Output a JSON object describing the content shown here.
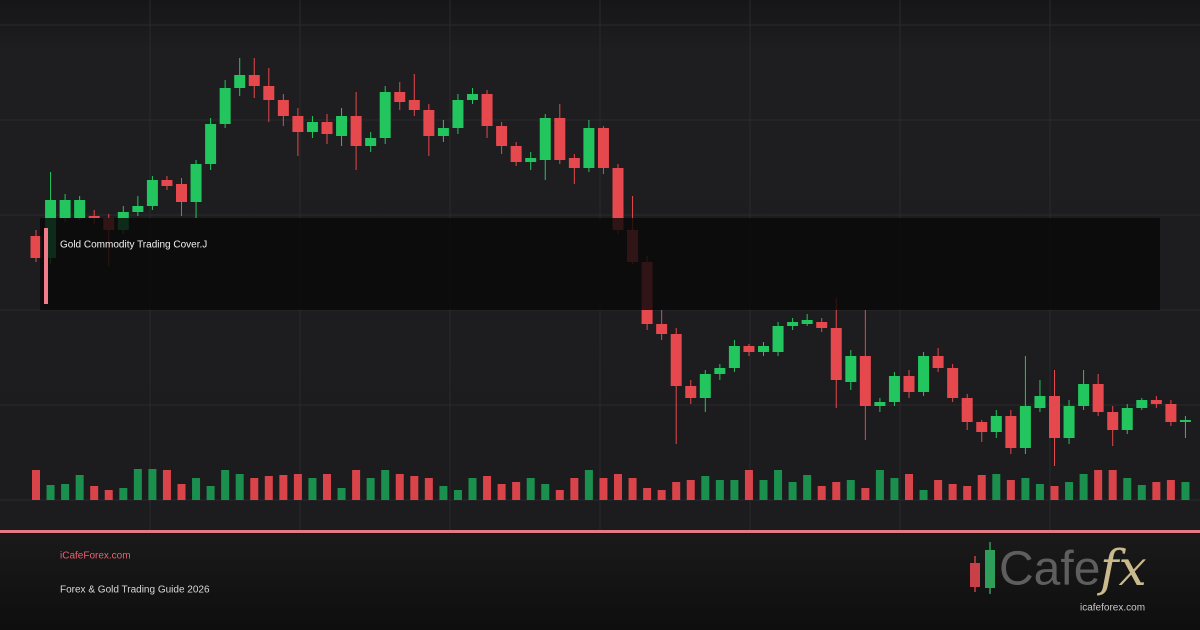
{
  "chart_data": {
    "type": "candlestick",
    "ylim": [
      0,
      500
    ],
    "up_color": "#22c55e",
    "down_color": "#e5484d",
    "volume_up_color": "#1a8f4e",
    "volume_down_color": "#d9434a",
    "open": [
      264,
      242,
      282,
      282,
      284,
      282,
      270,
      288,
      294,
      320,
      316,
      298,
      336,
      376,
      412,
      425,
      414,
      400,
      384,
      368,
      378,
      364,
      384,
      354,
      362,
      408,
      400,
      390,
      364,
      372,
      400,
      406,
      374,
      354,
      338,
      340,
      382,
      342,
      332,
      372,
      332,
      270,
      238,
      176,
      166,
      114,
      102,
      126,
      132,
      154,
      148,
      148,
      174,
      176,
      178,
      172,
      118,
      144,
      94,
      98,
      124,
      108,
      144,
      132,
      102,
      78,
      68,
      84,
      52,
      92,
      104,
      62,
      94,
      116,
      88,
      70,
      92,
      100,
      96,
      78
    ],
    "close": [
      242,
      300,
      300,
      300,
      282,
      270,
      288,
      294,
      320,
      314,
      298,
      336,
      376,
      412,
      425,
      414,
      400,
      384,
      368,
      378,
      366,
      384,
      354,
      362,
      408,
      398,
      390,
      364,
      372,
      400,
      406,
      374,
      354,
      338,
      342,
      382,
      340,
      332,
      372,
      332,
      270,
      238,
      176,
      166,
      114,
      102,
      126,
      132,
      154,
      148,
      154,
      174,
      178,
      180,
      172,
      120,
      144,
      94,
      98,
      124,
      108,
      144,
      132,
      102,
      78,
      68,
      84,
      52,
      94,
      104,
      62,
      94,
      116,
      88,
      70,
      92,
      100,
      96,
      78,
      80
    ],
    "high": [
      270,
      328,
      306,
      304,
      290,
      286,
      294,
      304,
      324,
      324,
      322,
      340,
      382,
      420,
      442,
      442,
      432,
      406,
      392,
      384,
      386,
      392,
      408,
      368,
      414,
      418,
      426,
      396,
      380,
      406,
      412,
      410,
      378,
      358,
      348,
      386,
      396,
      346,
      380,
      374,
      336,
      304,
      244,
      190,
      172,
      120,
      130,
      136,
      160,
      156,
      158,
      178,
      182,
      186,
      182,
      202,
      150,
      190,
      102,
      128,
      130,
      148,
      152,
      136,
      106,
      80,
      90,
      90,
      144,
      120,
      130,
      100,
      130,
      126,
      94,
      96,
      102,
      104,
      100,
      84
    ],
    "low": [
      238,
      236,
      278,
      280,
      276,
      234,
      266,
      284,
      290,
      310,
      284,
      282,
      330,
      372,
      404,
      402,
      378,
      374,
      344,
      362,
      356,
      354,
      330,
      348,
      356,
      390,
      384,
      344,
      358,
      366,
      396,
      362,
      346,
      334,
      330,
      320,
      336,
      316,
      328,
      326,
      266,
      236,
      170,
      160,
      56,
      96,
      88,
      120,
      128,
      144,
      144,
      144,
      170,
      174,
      168,
      92,
      110,
      60,
      88,
      94,
      102,
      104,
      128,
      98,
      70,
      58,
      62,
      46,
      46,
      88,
      34,
      56,
      90,
      84,
      54,
      66,
      90,
      92,
      74,
      62
    ],
    "volume": [
      30,
      15,
      16,
      25,
      14,
      10,
      12,
      31,
      31,
      30,
      16,
      22,
      14,
      30,
      26,
      22,
      24,
      25,
      26,
      22,
      26,
      12,
      30,
      22,
      30,
      26,
      24,
      22,
      14,
      10,
      22,
      24,
      16,
      18,
      22,
      16,
      10,
      22,
      30,
      22,
      26,
      22,
      12,
      10,
      18,
      20,
      24,
      20,
      20,
      30,
      20,
      30,
      18,
      25,
      14,
      18,
      20,
      12,
      30,
      22,
      26,
      10,
      20,
      16,
      14,
      25,
      26,
      20,
      22,
      16,
      14,
      18,
      26,
      30,
      30,
      22,
      15,
      18,
      20,
      18
    ]
  },
  "overlay": {
    "label": "Gold Commodity Trading Cover.J"
  },
  "footer": {
    "site": "iCafeForex.com",
    "subtitle": "Forex & Gold Trading Guide 2026"
  },
  "logo": {
    "word": "Cafe",
    "accent": "fx",
    "url": "icafeforex.com"
  }
}
